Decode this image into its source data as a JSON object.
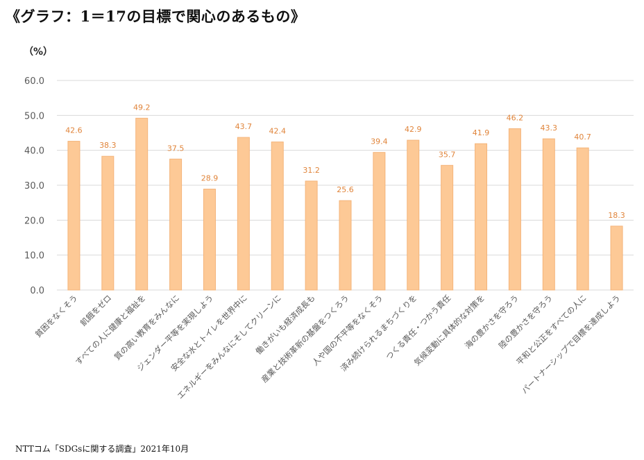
{
  "title": "《グラフ：1＝17の目標で関心のあるもの》",
  "unit_label": "（%）",
  "source": "NTTコム「SDGsに関する調査」2021年10月",
  "colors": {
    "bar_fill": "#fdc996",
    "bar_stroke": "#f4b47a",
    "label": "#e0843a",
    "grid": "#d9d9d9",
    "tick": "#595959"
  },
  "chart_data": {
    "type": "bar",
    "title": "《グラフ：1＝17の目標で関心のあるもの》",
    "ylabel": "（%）",
    "xlabel": "",
    "ylim": [
      0,
      60
    ],
    "yticks": [
      "0.0",
      "10.0",
      "20.0",
      "30.0",
      "40.0",
      "50.0",
      "60.0"
    ],
    "grid": true,
    "legend": "none",
    "categories": [
      "貧困をなくそう",
      "飢餓をゼロ",
      "すべての人に健康と福祉を",
      "質の高い教育をみんなに",
      "ジェンダー平等を実現しよう",
      "安全な水とトイレを世界中に",
      "エネルギーをみんなにそしてクリーンに",
      "働きがいも経済成長も",
      "産業と技術革新の基盤をつくろう",
      "人や国の不平等をなくそう",
      "済み続けられるまちづくりを",
      "つくる責任・つかう責任",
      "気候変動に具体的な対策を",
      "海の豊かさを守ろう",
      "陸の豊かさを守ろう",
      "平和と公正をすべての人に",
      "パートナーシップで目標を達成しよう"
    ],
    "values": [
      42.6,
      38.3,
      49.2,
      37.5,
      28.9,
      43.7,
      42.4,
      31.2,
      25.6,
      39.4,
      42.9,
      35.7,
      41.9,
      46.2,
      43.3,
      40.7,
      18.3
    ],
    "value_labels": [
      "42.6",
      "38.3",
      "49.2",
      "37.5",
      "28.9",
      "43.7",
      "42.4",
      "31.2",
      "25.6",
      "39.4",
      "42.9",
      "35.7",
      "41.9",
      "46.2",
      "43.3",
      "40.7",
      "18.3"
    ]
  }
}
